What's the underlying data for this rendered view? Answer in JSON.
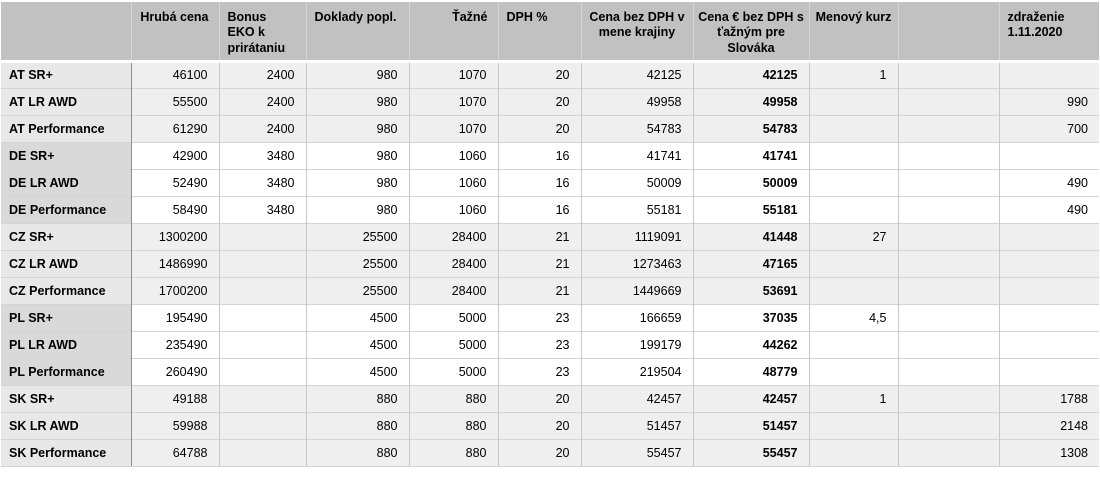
{
  "colors": {
    "header_bg": "#c1c1c1",
    "row_shaded": "#efefef",
    "label_shaded": "#e7e8e7",
    "label_white_group": "#d9d9d9",
    "row_white": "#ffffff",
    "grid_line": "#c9c9c9",
    "label_divider": "#8f8f8f"
  },
  "table": {
    "columns": [
      {
        "key": "rowlabel",
        "label": "",
        "header_align": "left",
        "cell_align": "left"
      },
      {
        "key": "hruba_cena",
        "label": "Hrubá cena",
        "header_align": "right",
        "cell_align": "right"
      },
      {
        "key": "bonus_eko",
        "label": "Bonus EKO k prirátaniu",
        "header_align": "left",
        "cell_align": "right"
      },
      {
        "key": "doklady",
        "label": "Doklady popl.",
        "header_align": "left",
        "cell_align": "right"
      },
      {
        "key": "tazne",
        "label": "Ťažné",
        "header_align": "right",
        "cell_align": "right"
      },
      {
        "key": "dph",
        "label": "DPH %",
        "header_align": "left",
        "cell_align": "right"
      },
      {
        "key": "cena_bez_dph",
        "label": "Cena bez DPH v mene krajiny",
        "header_align": "center",
        "cell_align": "right"
      },
      {
        "key": "cena_eur",
        "label": "Cena € bez DPH s ťažným pre Slováka",
        "header_align": "center",
        "cell_align": "right",
        "bold_cells": true
      },
      {
        "key": "kurz",
        "label": "Menový kurz",
        "header_align": "center",
        "cell_align": "right"
      },
      {
        "key": "spacer",
        "label": "",
        "header_align": "left",
        "cell_align": "right"
      },
      {
        "key": "zdrazenie",
        "label": "zdraženie 1.11.2020",
        "header_align": "left",
        "cell_align": "right"
      }
    ],
    "rows": [
      {
        "label": "AT SR+",
        "cells": {
          "hruba_cena": "46100",
          "bonus_eko": "2400",
          "doklady": "980",
          "tazne": "1070",
          "dph": "20",
          "cena_bez_dph": "42125",
          "cena_eur": "42125",
          "kurz": "1",
          "spacer": "",
          "zdrazenie": ""
        }
      },
      {
        "label": "AT LR AWD",
        "cells": {
          "hruba_cena": "55500",
          "bonus_eko": "2400",
          "doklady": "980",
          "tazne": "1070",
          "dph": "20",
          "cena_bez_dph": "49958",
          "cena_eur": "49958",
          "kurz": "",
          "spacer": "",
          "zdrazenie": "990"
        }
      },
      {
        "label": "AT Performance",
        "cells": {
          "hruba_cena": "61290",
          "bonus_eko": "2400",
          "doklady": "980",
          "tazne": "1070",
          "dph": "20",
          "cena_bez_dph": "54783",
          "cena_eur": "54783",
          "kurz": "",
          "spacer": "",
          "zdrazenie": "700"
        }
      },
      {
        "label": "DE SR+",
        "cells": {
          "hruba_cena": "42900",
          "bonus_eko": "3480",
          "doklady": "980",
          "tazne": "1060",
          "dph": "16",
          "cena_bez_dph": "41741",
          "cena_eur": "41741",
          "kurz": "",
          "spacer": "",
          "zdrazenie": ""
        }
      },
      {
        "label": "DE LR AWD",
        "cells": {
          "hruba_cena": "52490",
          "bonus_eko": "3480",
          "doklady": "980",
          "tazne": "1060",
          "dph": "16",
          "cena_bez_dph": "50009",
          "cena_eur": "50009",
          "kurz": "",
          "spacer": "",
          "zdrazenie": "490"
        }
      },
      {
        "label": "DE Performance",
        "cells": {
          "hruba_cena": "58490",
          "bonus_eko": "3480",
          "doklady": "980",
          "tazne": "1060",
          "dph": "16",
          "cena_bez_dph": "55181",
          "cena_eur": "55181",
          "kurz": "",
          "spacer": "",
          "zdrazenie": "490"
        }
      },
      {
        "label": "CZ SR+",
        "cells": {
          "hruba_cena": "1300200",
          "bonus_eko": "",
          "doklady": "25500",
          "tazne": "28400",
          "dph": "21",
          "cena_bez_dph": "1119091",
          "cena_eur": "41448",
          "kurz": "27",
          "spacer": "",
          "zdrazenie": ""
        }
      },
      {
        "label": "CZ LR AWD",
        "cells": {
          "hruba_cena": "1486990",
          "bonus_eko": "",
          "doklady": "25500",
          "tazne": "28400",
          "dph": "21",
          "cena_bez_dph": "1273463",
          "cena_eur": "47165",
          "kurz": "",
          "spacer": "",
          "zdrazenie": ""
        }
      },
      {
        "label": "CZ Performance",
        "cells": {
          "hruba_cena": "1700200",
          "bonus_eko": "",
          "doklady": "25500",
          "tazne": "28400",
          "dph": "21",
          "cena_bez_dph": "1449669",
          "cena_eur": "53691",
          "kurz": "",
          "spacer": "",
          "zdrazenie": ""
        }
      },
      {
        "label": "PL SR+",
        "cells": {
          "hruba_cena": "195490",
          "bonus_eko": "",
          "doklady": "4500",
          "tazne": "5000",
          "dph": "23",
          "cena_bez_dph": "166659",
          "cena_eur": "37035",
          "kurz": "4,5",
          "spacer": "",
          "zdrazenie": ""
        }
      },
      {
        "label": "PL LR AWD",
        "cells": {
          "hruba_cena": "235490",
          "bonus_eko": "",
          "doklady": "4500",
          "tazne": "5000",
          "dph": "23",
          "cena_bez_dph": "199179",
          "cena_eur": "44262",
          "kurz": "",
          "spacer": "",
          "zdrazenie": ""
        }
      },
      {
        "label": "PL Performance",
        "cells": {
          "hruba_cena": "260490",
          "bonus_eko": "",
          "doklady": "4500",
          "tazne": "5000",
          "dph": "23",
          "cena_bez_dph": "219504",
          "cena_eur": "48779",
          "kurz": "",
          "spacer": "",
          "zdrazenie": ""
        }
      },
      {
        "label": "SK SR+",
        "cells": {
          "hruba_cena": "49188",
          "bonus_eko": "",
          "doklady": "880",
          "tazne": "880",
          "dph": "20",
          "cena_bez_dph": "42457",
          "cena_eur": "42457",
          "kurz": "1",
          "spacer": "",
          "zdrazenie": "1788"
        }
      },
      {
        "label": "SK LR AWD",
        "cells": {
          "hruba_cena": "59988",
          "bonus_eko": "",
          "doklady": "880",
          "tazne": "880",
          "dph": "20",
          "cena_bez_dph": "51457",
          "cena_eur": "51457",
          "kurz": "",
          "spacer": "",
          "zdrazenie": "2148"
        }
      },
      {
        "label": "SK Performance",
        "cells": {
          "hruba_cena": "64788",
          "bonus_eko": "",
          "doklady": "880",
          "tazne": "880",
          "dph": "20",
          "cena_bez_dph": "55457",
          "cena_eur": "55457",
          "kurz": "",
          "spacer": "",
          "zdrazenie": "1308"
        }
      }
    ],
    "shaded_group_size": 3
  }
}
